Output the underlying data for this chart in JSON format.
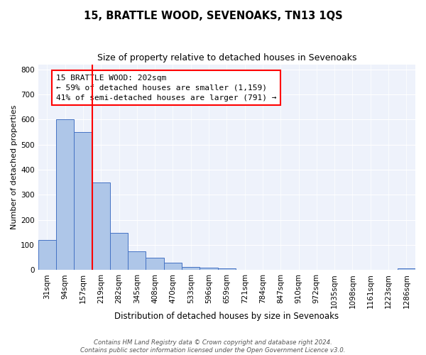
{
  "title": "15, BRATTLE WOOD, SEVENOAKS, TN13 1QS",
  "subtitle": "Size of property relative to detached houses in Sevenoaks",
  "xlabel": "Distribution of detached houses by size in Sevenoaks",
  "ylabel": "Number of detached properties",
  "categories": [
    "31sqm",
    "94sqm",
    "157sqm",
    "219sqm",
    "282sqm",
    "345sqm",
    "408sqm",
    "470sqm",
    "533sqm",
    "596sqm",
    "659sqm",
    "721sqm",
    "784sqm",
    "847sqm",
    "910sqm",
    "972sqm",
    "1035sqm",
    "1098sqm",
    "1161sqm",
    "1223sqm",
    "1286sqm"
  ],
  "values": [
    120,
    600,
    550,
    350,
    148,
    75,
    50,
    30,
    13,
    10,
    8,
    0,
    0,
    0,
    0,
    0,
    0,
    0,
    0,
    0,
    8
  ],
  "bar_color": "#aec6e8",
  "bar_edge_color": "#4472c4",
  "vline_index": 2.5,
  "vline_color": "red",
  "annotation_text": "15 BRATTLE WOOD: 202sqm\n← 59% of detached houses are smaller (1,159)\n41% of semi-detached houses are larger (791) →",
  "annotation_box_color": "white",
  "annotation_box_edge_color": "red",
  "ylim": [
    0,
    820
  ],
  "yticks": [
    0,
    100,
    200,
    300,
    400,
    500,
    600,
    700,
    800
  ],
  "bg_color": "#eef2fb",
  "footer": "Contains HM Land Registry data © Crown copyright and database right 2024.\nContains public sector information licensed under the Open Government Licence v3.0.",
  "title_fontsize": 10.5,
  "subtitle_fontsize": 9,
  "xlabel_fontsize": 8.5,
  "ylabel_fontsize": 8,
  "tick_fontsize": 7.5,
  "annotation_fontsize": 8
}
